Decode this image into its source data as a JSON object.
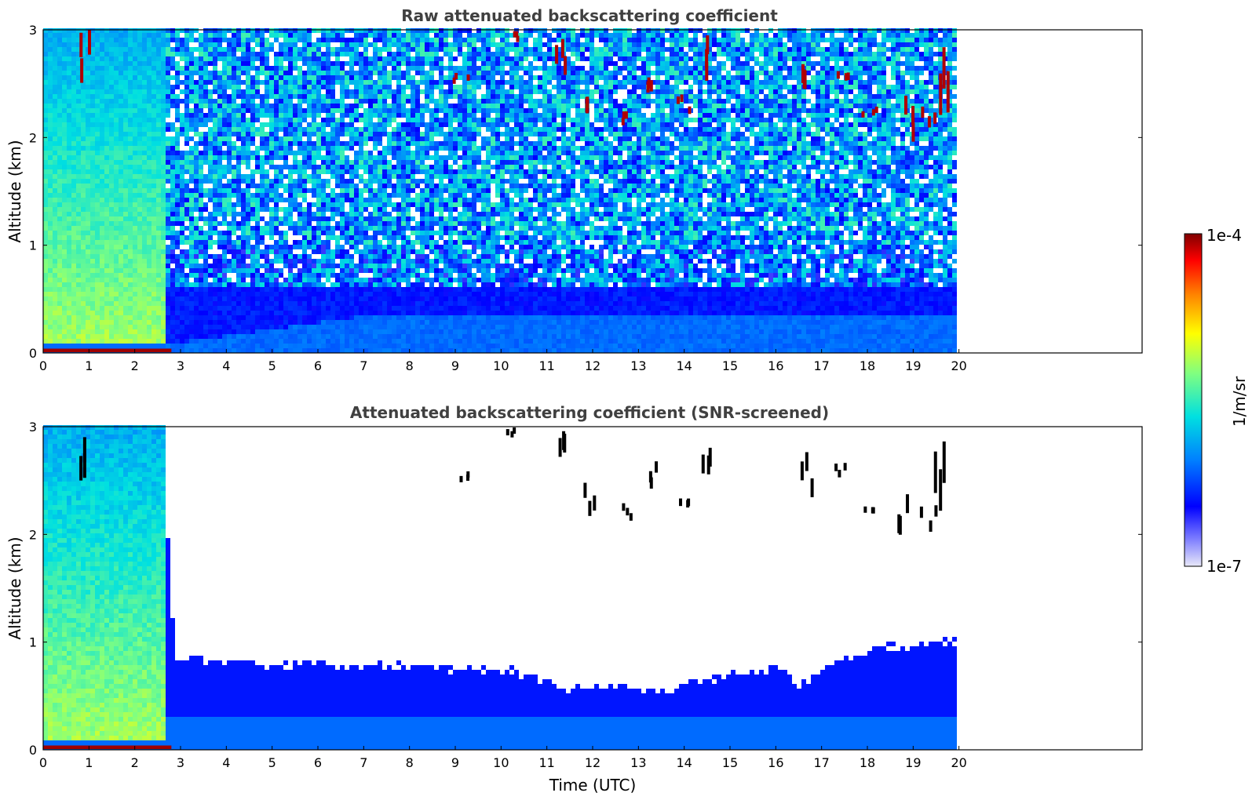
{
  "chart_data": [
    {
      "type": "heatmap",
      "title": "Raw attenuated backscattering coefficient",
      "xlabel": "",
      "ylabel": "Altitude (km)",
      "xlim": [
        0,
        24
      ],
      "ylim": [
        0,
        3
      ],
      "xticks": [
        "0",
        "1",
        "2",
        "3",
        "4",
        "5",
        "6",
        "7",
        "8",
        "9",
        "10",
        "11",
        "12",
        "13",
        "14",
        "15",
        "16",
        "17",
        "18",
        "19",
        "20"
      ],
      "yticks": [
        "0",
        "1",
        "2",
        "3"
      ],
      "data_extent_hours": 19.95,
      "cloud_events": [
        {
          "time": 0.95,
          "alt_min": 2.35,
          "alt_max": 3.0
        },
        {
          "time": 9.1,
          "alt_min": 2.5,
          "alt_max": 2.6
        },
        {
          "time": 10.2,
          "alt_min": 2.9,
          "alt_max": 3.0
        },
        {
          "time": 11.2,
          "alt_min": 2.5,
          "alt_max": 3.0
        },
        {
          "time": 11.9,
          "alt_min": 2.1,
          "alt_max": 2.5
        },
        {
          "time": 12.8,
          "alt_min": 2.1,
          "alt_max": 2.3
        },
        {
          "time": 13.3,
          "alt_min": 2.4,
          "alt_max": 2.7
        },
        {
          "time": 14.0,
          "alt_min": 2.2,
          "alt_max": 2.4
        },
        {
          "time": 14.5,
          "alt_min": 2.5,
          "alt_max": 3.0
        },
        {
          "time": 16.6,
          "alt_min": 2.3,
          "alt_max": 2.8
        },
        {
          "time": 17.4,
          "alt_min": 2.5,
          "alt_max": 2.7
        },
        {
          "time": 18.0,
          "alt_min": 2.2,
          "alt_max": 2.3
        },
        {
          "time": 18.8,
          "alt_min": 1.9,
          "alt_max": 2.4
        },
        {
          "time": 19.3,
          "alt_min": 2.0,
          "alt_max": 2.3
        },
        {
          "time": 19.6,
          "alt_min": 1.9,
          "alt_max": 3.0
        }
      ],
      "boundary_layer_top_km": [
        {
          "time": 0,
          "alt": 0.1
        },
        {
          "time": 3,
          "alt": 0.1
        },
        {
          "time": 7,
          "alt": 0.35
        },
        {
          "time": 20,
          "alt": 0.35
        }
      ]
    },
    {
      "type": "heatmap",
      "title": "Attenuated backscattering coefficient (SNR-screened)",
      "xlabel": "Time (UTC)",
      "ylabel": "Altitude (km)",
      "xlim": [
        0,
        24
      ],
      "ylim": [
        0,
        3
      ],
      "xticks": [
        "0",
        "1",
        "2",
        "3",
        "4",
        "5",
        "6",
        "7",
        "8",
        "9",
        "10",
        "11",
        "12",
        "13",
        "14",
        "15",
        "16",
        "17",
        "18",
        "19",
        "20"
      ],
      "yticks": [
        "0",
        "1",
        "2",
        "3"
      ],
      "data_extent_hours": 19.95,
      "screened_top_km": [
        {
          "time": 0.0,
          "alt": 3.0
        },
        {
          "time": 2.65,
          "alt": 3.0
        },
        {
          "time": 2.75,
          "alt": 1.6
        },
        {
          "time": 2.9,
          "alt": 0.85
        },
        {
          "time": 5.0,
          "alt": 0.8
        },
        {
          "time": 8.0,
          "alt": 0.78
        },
        {
          "time": 10.5,
          "alt": 0.72
        },
        {
          "time": 11.5,
          "alt": 0.55
        },
        {
          "time": 12.5,
          "alt": 0.6
        },
        {
          "time": 13.5,
          "alt": 0.55
        },
        {
          "time": 14.5,
          "alt": 0.65
        },
        {
          "time": 16.2,
          "alt": 0.75
        },
        {
          "time": 16.5,
          "alt": 0.6
        },
        {
          "time": 17.5,
          "alt": 0.85
        },
        {
          "time": 18.5,
          "alt": 0.95
        },
        {
          "time": 19.9,
          "alt": 1.0
        }
      ]
    }
  ],
  "colorbar": {
    "max_label": "1e-4",
    "min_label": "1e-7",
    "label": "1/m/sr",
    "stops": [
      "#e8e8f8",
      "#0000ff",
      "#0080ff",
      "#00e0e0",
      "#80ff80",
      "#ffff00",
      "#ff8000",
      "#ff0000",
      "#800000"
    ]
  }
}
